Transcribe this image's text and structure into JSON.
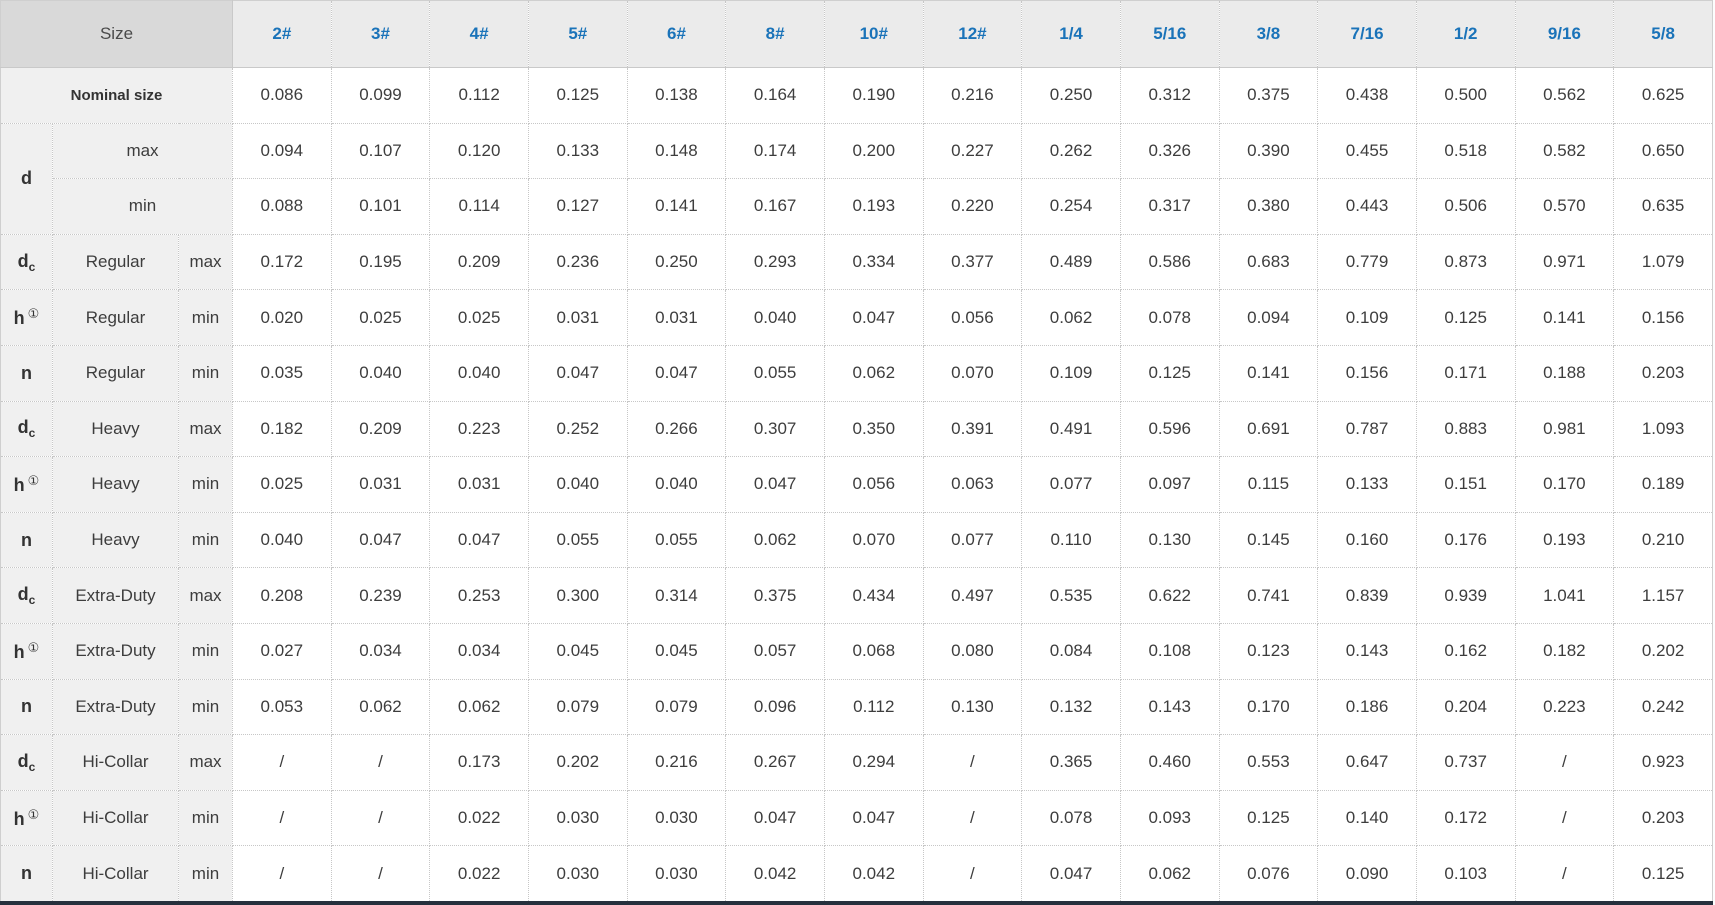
{
  "table": {
    "corner_label": "Size",
    "columns": [
      "2#",
      "3#",
      "4#",
      "5#",
      "6#",
      "8#",
      "10#",
      "12#",
      "1/4",
      "5/16",
      "3/8",
      "7/16",
      "1/2",
      "9/16",
      "5/8"
    ],
    "rows": [
      {
        "cells": [
          {
            "t": "Nominal size",
            "cs": 3,
            "cls": "nominal",
            "name": "row-label-nominal-size"
          }
        ],
        "values": [
          "0.086",
          "0.099",
          "0.112",
          "0.125",
          "0.138",
          "0.164",
          "0.190",
          "0.216",
          "0.250",
          "0.312",
          "0.375",
          "0.438",
          "0.500",
          "0.562",
          "0.625"
        ]
      },
      {
        "cells": [
          {
            "t": "d",
            "rs": 2,
            "cls": "sym",
            "name": "row-label-d"
          },
          {
            "t": "max",
            "cs": 2,
            "name": "row-label-max"
          }
        ],
        "values": [
          "0.094",
          "0.107",
          "0.120",
          "0.133",
          "0.148",
          "0.174",
          "0.200",
          "0.227",
          "0.262",
          "0.326",
          "0.390",
          "0.455",
          "0.518",
          "0.582",
          "0.650"
        ]
      },
      {
        "cells": [
          {
            "t": "min",
            "cs": 2,
            "name": "row-label-min"
          }
        ],
        "values": [
          "0.088",
          "0.101",
          "0.114",
          "0.127",
          "0.141",
          "0.167",
          "0.193",
          "0.220",
          "0.254",
          "0.317",
          "0.380",
          "0.443",
          "0.506",
          "0.570",
          "0.635"
        ]
      },
      {
        "cells": [
          {
            "t": "d",
            "sub": "c",
            "cls": "sym",
            "name": "row-label-dc"
          },
          {
            "t": "Regular",
            "name": "row-label-series"
          },
          {
            "t": "max",
            "name": "row-label-limit"
          }
        ],
        "values": [
          "0.172",
          "0.195",
          "0.209",
          "0.236",
          "0.250",
          "0.293",
          "0.334",
          "0.377",
          "0.489",
          "0.586",
          "0.683",
          "0.779",
          "0.873",
          "0.971",
          "1.079"
        ]
      },
      {
        "cells": [
          {
            "t": "h",
            "sup": "①",
            "cls": "sym",
            "name": "row-label-h"
          },
          {
            "t": "Regular",
            "name": "row-label-series"
          },
          {
            "t": "min",
            "name": "row-label-limit"
          }
        ],
        "values": [
          "0.020",
          "0.025",
          "0.025",
          "0.031",
          "0.031",
          "0.040",
          "0.047",
          "0.056",
          "0.062",
          "0.078",
          "0.094",
          "0.109",
          "0.125",
          "0.141",
          "0.156"
        ]
      },
      {
        "cells": [
          {
            "t": "n",
            "cls": "sym",
            "name": "row-label-n"
          },
          {
            "t": "Regular",
            "name": "row-label-series"
          },
          {
            "t": "min",
            "name": "row-label-limit"
          }
        ],
        "values": [
          "0.035",
          "0.040",
          "0.040",
          "0.047",
          "0.047",
          "0.055",
          "0.062",
          "0.070",
          "0.109",
          "0.125",
          "0.141",
          "0.156",
          "0.171",
          "0.188",
          "0.203"
        ]
      },
      {
        "cells": [
          {
            "t": "d",
            "sub": "c",
            "cls": "sym",
            "name": "row-label-dc"
          },
          {
            "t": "Heavy",
            "name": "row-label-series"
          },
          {
            "t": "max",
            "name": "row-label-limit"
          }
        ],
        "values": [
          "0.182",
          "0.209",
          "0.223",
          "0.252",
          "0.266",
          "0.307",
          "0.350",
          "0.391",
          "0.491",
          "0.596",
          "0.691",
          "0.787",
          "0.883",
          "0.981",
          "1.093"
        ]
      },
      {
        "cells": [
          {
            "t": "h",
            "sup": "①",
            "cls": "sym",
            "name": "row-label-h"
          },
          {
            "t": "Heavy",
            "name": "row-label-series"
          },
          {
            "t": "min",
            "name": "row-label-limit"
          }
        ],
        "values": [
          "0.025",
          "0.031",
          "0.031",
          "0.040",
          "0.040",
          "0.047",
          "0.056",
          "0.063",
          "0.077",
          "0.097",
          "0.115",
          "0.133",
          "0.151",
          "0.170",
          "0.189"
        ]
      },
      {
        "cells": [
          {
            "t": "n",
            "cls": "sym",
            "name": "row-label-n"
          },
          {
            "t": "Heavy",
            "name": "row-label-series"
          },
          {
            "t": "min",
            "name": "row-label-limit"
          }
        ],
        "values": [
          "0.040",
          "0.047",
          "0.047",
          "0.055",
          "0.055",
          "0.062",
          "0.070",
          "0.077",
          "0.110",
          "0.130",
          "0.145",
          "0.160",
          "0.176",
          "0.193",
          "0.210"
        ]
      },
      {
        "cells": [
          {
            "t": "d",
            "sub": "c",
            "cls": "sym",
            "name": "row-label-dc"
          },
          {
            "t": "Extra-Duty",
            "name": "row-label-series"
          },
          {
            "t": "max",
            "name": "row-label-limit"
          }
        ],
        "values": [
          "0.208",
          "0.239",
          "0.253",
          "0.300",
          "0.314",
          "0.375",
          "0.434",
          "0.497",
          "0.535",
          "0.622",
          "0.741",
          "0.839",
          "0.939",
          "1.041",
          "1.157"
        ]
      },
      {
        "cells": [
          {
            "t": "h",
            "sup": "①",
            "cls": "sym",
            "name": "row-label-h"
          },
          {
            "t": "Extra-Duty",
            "name": "row-label-series"
          },
          {
            "t": "min",
            "name": "row-label-limit"
          }
        ],
        "values": [
          "0.027",
          "0.034",
          "0.034",
          "0.045",
          "0.045",
          "0.057",
          "0.068",
          "0.080",
          "0.084",
          "0.108",
          "0.123",
          "0.143",
          "0.162",
          "0.182",
          "0.202"
        ]
      },
      {
        "cells": [
          {
            "t": "n",
            "cls": "sym",
            "name": "row-label-n"
          },
          {
            "t": "Extra-Duty",
            "name": "row-label-series"
          },
          {
            "t": "min",
            "name": "row-label-limit"
          }
        ],
        "values": [
          "0.053",
          "0.062",
          "0.062",
          "0.079",
          "0.079",
          "0.096",
          "0.112",
          "0.130",
          "0.132",
          "0.143",
          "0.170",
          "0.186",
          "0.204",
          "0.223",
          "0.242"
        ]
      },
      {
        "cells": [
          {
            "t": "d",
            "sub": "c",
            "cls": "sym",
            "name": "row-label-dc"
          },
          {
            "t": "Hi-Collar",
            "name": "row-label-series"
          },
          {
            "t": "max",
            "name": "row-label-limit"
          }
        ],
        "values": [
          "/",
          "/",
          "0.173",
          "0.202",
          "0.216",
          "0.267",
          "0.294",
          "/",
          "0.365",
          "0.460",
          "0.553",
          "0.647",
          "0.737",
          "/",
          "0.923"
        ]
      },
      {
        "cells": [
          {
            "t": "h",
            "sup": "①",
            "cls": "sym",
            "name": "row-label-h"
          },
          {
            "t": "Hi-Collar",
            "name": "row-label-series"
          },
          {
            "t": "min",
            "name": "row-label-limit"
          }
        ],
        "values": [
          "/",
          "/",
          "0.022",
          "0.030",
          "0.030",
          "0.047",
          "0.047",
          "/",
          "0.078",
          "0.093",
          "0.125",
          "0.140",
          "0.172",
          "/",
          "0.203"
        ]
      },
      {
        "cells": [
          {
            "t": "n",
            "cls": "sym",
            "name": "row-label-n"
          },
          {
            "t": "Hi-Collar",
            "name": "row-label-series"
          },
          {
            "t": "min",
            "name": "row-label-limit"
          }
        ],
        "values": [
          "/",
          "/",
          "0.022",
          "0.030",
          "0.030",
          "0.042",
          "0.042",
          "/",
          "0.047",
          "0.062",
          "0.076",
          "0.090",
          "0.103",
          "/",
          "0.125"
        ]
      }
    ]
  },
  "colors": {
    "header_link_blue": "#1a73b9",
    "corner_bg": "#d9d9d9",
    "header_bg": "#ebebeb",
    "label_cell_bg": "#f0f0f0",
    "data_text": "#3d3d3d",
    "grid_dotted": "#c7c7c7",
    "bottom_border": "#26303d"
  }
}
